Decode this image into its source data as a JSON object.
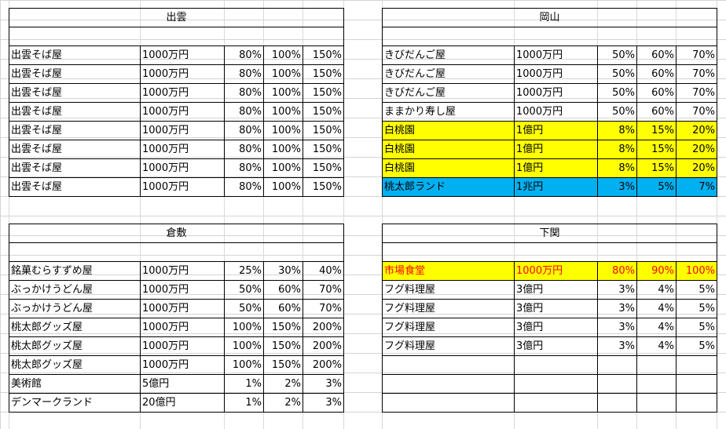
{
  "colors": {
    "highlight_yellow": "#ffff00",
    "highlight_blue": "#00b0f0",
    "alert_red": "#ff0000"
  },
  "tables": {
    "izumo": {
      "title": "出雲",
      "rows": [
        [
          "出雲そば屋",
          "1000万円",
          "80%",
          "100%",
          "150%"
        ],
        [
          "出雲そば屋",
          "1000万円",
          "80%",
          "100%",
          "150%"
        ],
        [
          "出雲そば屋",
          "1000万円",
          "80%",
          "100%",
          "150%"
        ],
        [
          "出雲そば屋",
          "1000万円",
          "80%",
          "100%",
          "150%"
        ],
        [
          "出雲そば屋",
          "1000万円",
          "80%",
          "100%",
          "150%"
        ],
        [
          "出雲そば屋",
          "1000万円",
          "80%",
          "100%",
          "150%"
        ],
        [
          "出雲そば屋",
          "1000万円",
          "80%",
          "100%",
          "150%"
        ],
        [
          "出雲そば屋",
          "1000万円",
          "80%",
          "100%",
          "150%"
        ]
      ]
    },
    "okayama": {
      "title": "岡山",
      "rows": [
        [
          "きびだんご屋",
          "1000万円",
          "50%",
          "60%",
          "70%"
        ],
        [
          "きびだんご屋",
          "1000万円",
          "50%",
          "60%",
          "70%"
        ],
        [
          "きびだんご屋",
          "1000万円",
          "50%",
          "60%",
          "70%"
        ],
        [
          "ままかり寿し屋",
          "1000万円",
          "50%",
          "60%",
          "70%"
        ],
        [
          "白桃園",
          "1億円",
          "8%",
          "15%",
          "20%"
        ],
        [
          "白桃園",
          "1億円",
          "8%",
          "15%",
          "20%"
        ],
        [
          "白桃園",
          "1億円",
          "8%",
          "15%",
          "20%"
        ],
        [
          "桃太郎ランド",
          "1兆円",
          "3%",
          "5%",
          "7%"
        ]
      ]
    },
    "kurashiki": {
      "title": "倉敷",
      "rows": [
        [
          "銘菓むらすずめ屋",
          "1000万円",
          "25%",
          "30%",
          "40%"
        ],
        [
          "ぶっかけうどん屋",
          "1000万円",
          "50%",
          "60%",
          "70%"
        ],
        [
          "ぶっかけうどん屋",
          "1000万円",
          "50%",
          "60%",
          "70%"
        ],
        [
          "桃太郎グッズ屋",
          "1000万円",
          "100%",
          "150%",
          "200%"
        ],
        [
          "桃太郎グッズ屋",
          "1000万円",
          "100%",
          "150%",
          "200%"
        ],
        [
          "桃太郎グッズ屋",
          "1000万円",
          "100%",
          "150%",
          "200%"
        ],
        [
          "美術館",
          "5億円",
          "1%",
          "2%",
          "3%"
        ],
        [
          "デンマークランド",
          "20億円",
          "1%",
          "2%",
          "3%"
        ]
      ]
    },
    "shimonoseki": {
      "title": "下関",
      "rows": [
        [
          "市場食堂",
          "1000万円",
          "80%",
          "90%",
          "100%"
        ],
        [
          "フグ料理屋",
          "3億円",
          "3%",
          "4%",
          "5%"
        ],
        [
          "フグ料理屋",
          "3億円",
          "3%",
          "4%",
          "5%"
        ],
        [
          "フグ料理屋",
          "3億円",
          "3%",
          "4%",
          "5%"
        ],
        [
          "フグ料理屋",
          "3億円",
          "3%",
          "4%",
          "5%"
        ],
        [
          "",
          "",
          "",
          "",
          ""
        ],
        [
          "",
          "",
          "",
          "",
          ""
        ],
        [
          "",
          "",
          "",
          "",
          ""
        ]
      ]
    }
  }
}
